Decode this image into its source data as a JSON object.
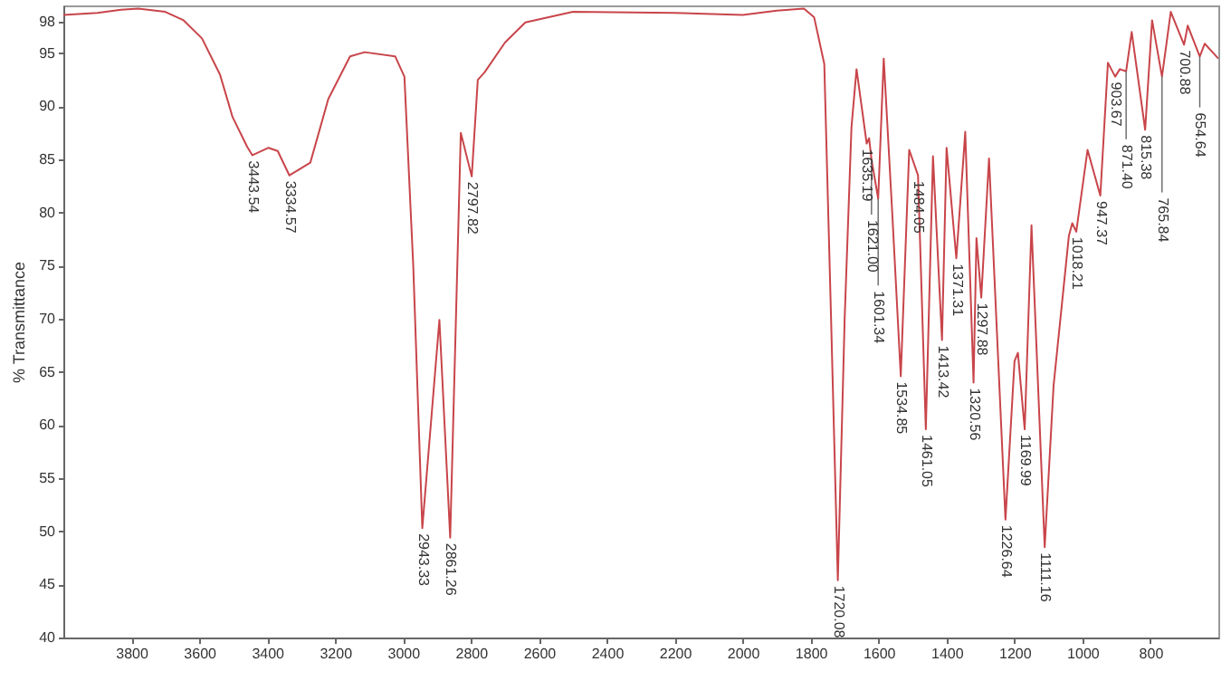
{
  "chart_data": {
    "type": "line",
    "ylabel": "% Transmittance",
    "xlim": [
      4000,
      600
    ],
    "ylim": [
      40,
      99.5
    ],
    "xticks": [
      3800,
      3600,
      3400,
      3200,
      3000,
      2800,
      2600,
      2400,
      2200,
      2000,
      1800,
      1600,
      1400,
      1200,
      1000,
      800
    ],
    "yticks": [
      40,
      45,
      50,
      55,
      60,
      65,
      70,
      75,
      80,
      85,
      90,
      95,
      98
    ],
    "grid": false,
    "series": [
      {
        "color": "#c8454a",
        "x": [
          4000,
          3900,
          3830,
          3780,
          3700,
          3646,
          3592,
          3539,
          3502,
          3459,
          3443.54,
          3396,
          3369,
          3334.57,
          3273,
          3220,
          3156,
          3113,
          3023,
          2996,
          2970,
          2943.33,
          2893,
          2861.26,
          2830,
          2797.82,
          2780,
          2760,
          2700,
          2640,
          2500,
          2200,
          2000,
          1900,
          1820,
          1790,
          1760,
          1740,
          1720.08,
          1700,
          1680,
          1665,
          1635.19,
          1628,
          1621,
          1601.34,
          1585,
          1560,
          1534.85,
          1510,
          1484.05,
          1461.05,
          1440,
          1413.42,
          1400,
          1371.31,
          1345,
          1320.56,
          1312,
          1297.88,
          1275,
          1226.64,
          1200,
          1190,
          1169.99,
          1150,
          1111.16,
          1085,
          1040,
          1030,
          1018.21,
          985,
          947.37,
          925,
          903.67,
          890,
          871.4,
          855,
          815.38,
          795,
          765.84,
          740,
          700.88,
          690,
          654.64,
          640,
          600
        ],
        "values": [
          98.6,
          98.8,
          99.1,
          99.2,
          98.9,
          98.1,
          96.4,
          93,
          89,
          86.2,
          85.4,
          86.1,
          85.8,
          83.5,
          84.7,
          90.7,
          94.7,
          95.1,
          94.7,
          92.8,
          75,
          50.3,
          69.9,
          49.4,
          87.5,
          83.4,
          92.5,
          93.2,
          96,
          97.9,
          98.9,
          98.8,
          98.6,
          99,
          99.2,
          98.4,
          94,
          70,
          45.4,
          70,
          88,
          93.5,
          86.5,
          87,
          85,
          81.3,
          94.5,
          80,
          64.6,
          85.9,
          83.5,
          59.6,
          85.3,
          68,
          86.1,
          75.7,
          87.6,
          64,
          77.6,
          72,
          85.1,
          51.1,
          66,
          66.8,
          59.6,
          78.8,
          48.5,
          63.7,
          77.8,
          79,
          78.2,
          85.9,
          81.6,
          94.1,
          92.8,
          93.5,
          93.3,
          97,
          87.8,
          98.1,
          92.8,
          98.9,
          95.8,
          97.6,
          94.7,
          95.9,
          94.5
        ]
      }
    ],
    "annotations": [
      {
        "text": "3443.54",
        "x": 3443.54,
        "y": 85.4
      },
      {
        "text": "3334.57",
        "x": 3334.57,
        "y": 83.5
      },
      {
        "text": "2943.33",
        "x": 2943.33,
        "y": 50.3
      },
      {
        "text": "2861.26",
        "x": 2861.26,
        "y": 49.4
      },
      {
        "text": "2797.82",
        "x": 2797.82,
        "y": 83.4
      },
      {
        "text": "1720.08",
        "x": 1720.08,
        "y": 45.4
      },
      {
        "text": "1635.19",
        "x": 1635.19,
        "y": 86.5
      },
      {
        "text": "1621.00",
        "x": 1621,
        "y": 85
      },
      {
        "text": "1601.34",
        "x": 1601.34,
        "y": 81.3
      },
      {
        "text": "1534.85",
        "x": 1534.85,
        "y": 64.6
      },
      {
        "text": "1484.05",
        "x": 1484.05,
        "y": 83.5
      },
      {
        "text": "1461.05",
        "x": 1461.05,
        "y": 59.6
      },
      {
        "text": "1413.42",
        "x": 1413.42,
        "y": 68
      },
      {
        "text": "1371.31",
        "x": 1371.31,
        "y": 75.7
      },
      {
        "text": "1320.56",
        "x": 1320.56,
        "y": 64
      },
      {
        "text": "1297.88",
        "x": 1297.88,
        "y": 72
      },
      {
        "text": "1226.64",
        "x": 1226.64,
        "y": 51.1
      },
      {
        "text": "1169.99",
        "x": 1169.99,
        "y": 59.6
      },
      {
        "text": "1111.16",
        "x": 1111.16,
        "y": 48.5
      },
      {
        "text": "1018.21",
        "x": 1018.21,
        "y": 78.2
      },
      {
        "text": "947.37",
        "x": 947.37,
        "y": 81.6
      },
      {
        "text": "903.67",
        "x": 903.67,
        "y": 92.8
      },
      {
        "text": "871.40",
        "x": 871.4,
        "y": 93.3
      },
      {
        "text": "815.38",
        "x": 815.38,
        "y": 87.8
      },
      {
        "text": "765.84",
        "x": 765.84,
        "y": 92.8
      },
      {
        "text": "700.88",
        "x": 700.88,
        "y": 95.8
      },
      {
        "text": "654.64",
        "x": 654.64,
        "y": 94.7
      }
    ]
  }
}
